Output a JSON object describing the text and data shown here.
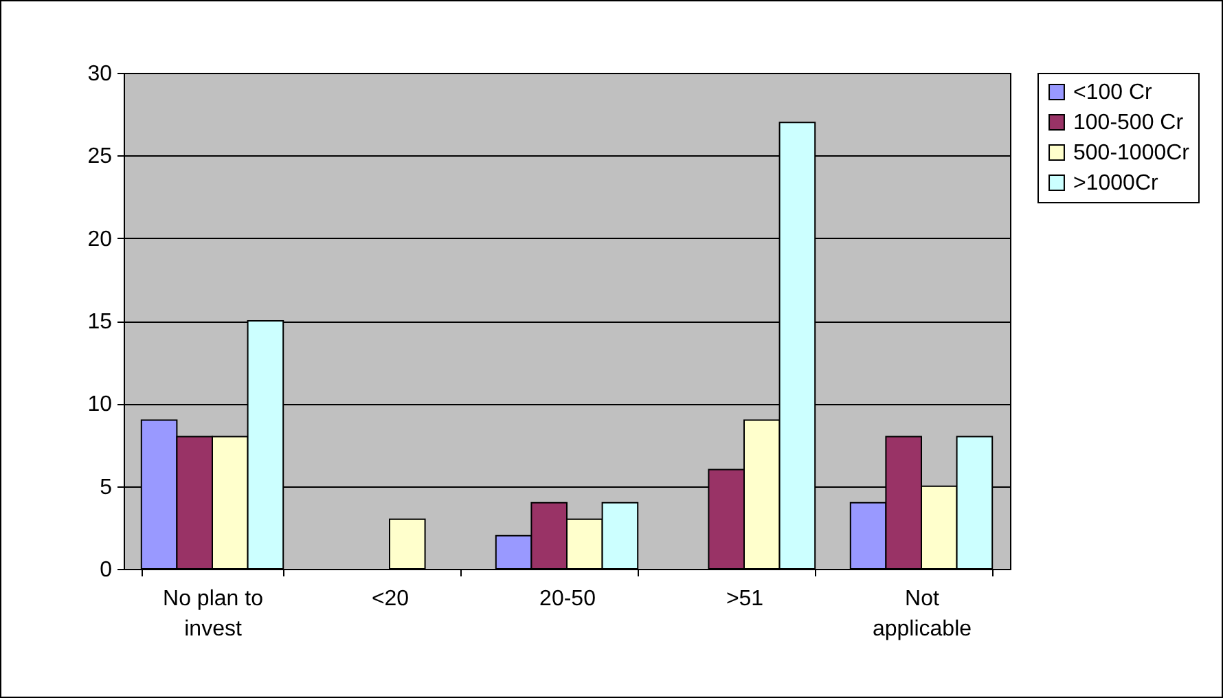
{
  "chart_data": {
    "type": "bar",
    "categories": [
      "No plan to invest",
      "<20",
      "20-50",
      ">51",
      "Not applicable"
    ],
    "series": [
      {
        "name": "<100 Cr",
        "color": "#9999ff",
        "values": [
          9,
          null,
          2,
          null,
          4
        ]
      },
      {
        "name": "100-500 Cr",
        "color": "#993366",
        "values": [
          8,
          null,
          4,
          6,
          8
        ]
      },
      {
        "name": "500-1000Cr",
        "color": "#ffffcc",
        "values": [
          8,
          3,
          3,
          9,
          5
        ]
      },
      {
        "name": ">1000Cr",
        "color": "#ccffff",
        "values": [
          15,
          null,
          4,
          27,
          8
        ]
      }
    ],
    "ylim": [
      0,
      30
    ],
    "yticks": [
      0,
      5,
      10,
      15,
      20,
      25,
      30
    ],
    "grid": "y",
    "legend": "right"
  }
}
